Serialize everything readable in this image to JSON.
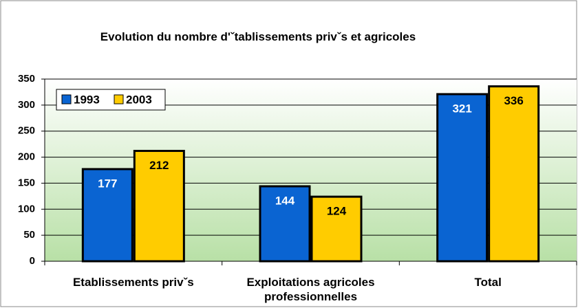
{
  "chart_data": {
    "type": "bar",
    "title": "Evolution  du nombre d'ˇtablissements privˇs et agricoles",
    "categories": [
      "Etablissements privˇs",
      "Exploitations agricoles professionnelles",
      "Total"
    ],
    "series": [
      {
        "name": "1993",
        "color": "#0a64d2",
        "values": [
          177,
          144,
          321
        ]
      },
      {
        "name": "2003",
        "color": "#ffcc00",
        "values": [
          212,
          124,
          336
        ]
      }
    ],
    "ylim": [
      0,
      350
    ],
    "yticks": [
      0,
      50,
      100,
      150,
      200,
      250,
      300,
      350
    ],
    "grid": true,
    "legend": "top-left"
  }
}
